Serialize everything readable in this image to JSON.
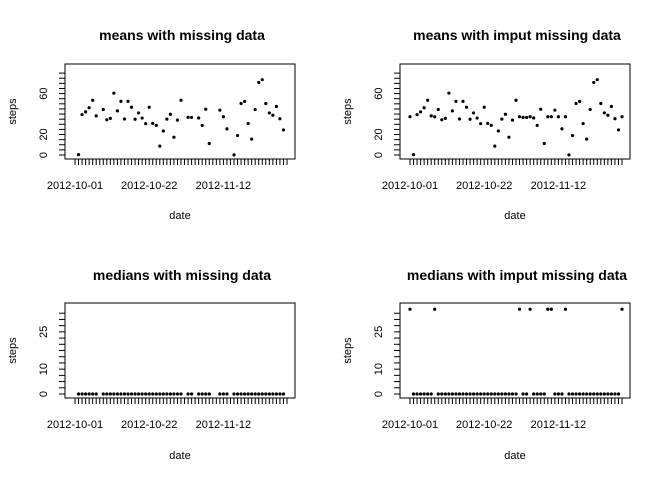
{
  "chart_data": [
    {
      "type": "scatter",
      "title": "means with missing data",
      "xlabel": "date",
      "ylabel": "steps",
      "x_tick_labels": [
        "2012-10-01",
        "2012-10-22",
        "2012-11-12"
      ],
      "y_ticks": [
        0,
        20,
        60
      ],
      "ylim": [
        0,
        85
      ],
      "days": 61,
      "x_label_every": 21,
      "values": [
        null,
        0.4,
        39.4,
        42.1,
        46.2,
        53.5,
        38.2,
        null,
        44.5,
        34.4,
        35.8,
        60.4,
        43.1,
        52.4,
        35.2,
        52.4,
        46.7,
        34.9,
        41.1,
        36.1,
        30.6,
        46.7,
        30.9,
        29.0,
        8.7,
        23.5,
        35.1,
        39.8,
        17.4,
        34.1,
        53.5,
        null,
        36.8,
        36.7,
        null,
        36.2,
        28.9,
        44.7,
        11.2,
        null,
        null,
        43.8,
        37.4,
        25.5,
        null,
        0.1,
        19.0,
        50.3,
        52.4,
        30.7,
        15.5,
        44.4,
        70.9,
        73.6,
        50.3,
        41.1,
        38.8,
        47.4,
        35.4,
        24.5,
        null
      ]
    },
    {
      "type": "scatter",
      "title": "means with imput missing data",
      "xlabel": "date",
      "ylabel": "steps",
      "x_tick_labels": [
        "2012-10-01",
        "2012-10-22",
        "2012-11-12"
      ],
      "y_ticks": [
        0,
        20,
        60
      ],
      "ylim": [
        0,
        85
      ],
      "days": 61,
      "x_label_every": 21,
      "values": [
        37.4,
        0.4,
        39.4,
        42.1,
        46.2,
        53.5,
        38.2,
        37.4,
        44.5,
        34.4,
        35.8,
        60.4,
        43.1,
        52.4,
        35.2,
        52.4,
        46.7,
        34.9,
        41.1,
        36.1,
        30.6,
        46.7,
        30.9,
        29.0,
        8.7,
        23.5,
        35.1,
        39.8,
        17.4,
        34.1,
        53.5,
        37.4,
        36.8,
        36.7,
        37.4,
        36.2,
        28.9,
        44.7,
        11.2,
        37.4,
        37.4,
        43.8,
        37.4,
        25.5,
        37.4,
        0.1,
        19.0,
        50.3,
        52.4,
        30.7,
        15.5,
        44.4,
        70.9,
        73.6,
        50.3,
        41.1,
        38.8,
        47.4,
        35.4,
        24.5,
        37.4
      ]
    },
    {
      "type": "scatter",
      "title": "medians with missing data",
      "xlabel": "date",
      "ylabel": "steps",
      "x_tick_labels": [
        "2012-10-01",
        "2012-10-22",
        "2012-11-12"
      ],
      "y_ticks": [
        0,
        10,
        25
      ],
      "ylim": [
        0,
        35
      ],
      "days": 61,
      "x_label_every": 21,
      "values": [
        null,
        0,
        0,
        0,
        0,
        0,
        0,
        null,
        0,
        0,
        0,
        0,
        0,
        0,
        0,
        0,
        0,
        0,
        0,
        0,
        0,
        0,
        0,
        0,
        0,
        0,
        0,
        0,
        0,
        0,
        0,
        null,
        0,
        0,
        null,
        0,
        0,
        0,
        0,
        null,
        null,
        0,
        0,
        0,
        null,
        0,
        0,
        0,
        0,
        0,
        0,
        0,
        0,
        0,
        0,
        0,
        0,
        0,
        0,
        0,
        null
      ]
    },
    {
      "type": "scatter",
      "title": "medians with imput missing data",
      "xlabel": "date",
      "ylabel": "steps",
      "x_tick_labels": [
        "2012-10-01",
        "2012-10-22",
        "2012-11-12"
      ],
      "y_ticks": [
        0,
        10,
        25
      ],
      "ylim": [
        0,
        35
      ],
      "days": 61,
      "x_label_every": 21,
      "values": [
        34.1,
        0,
        0,
        0,
        0,
        0,
        0,
        34.1,
        0,
        0,
        0,
        0,
        0,
        0,
        0,
        0,
        0,
        0,
        0,
        0,
        0,
        0,
        0,
        0,
        0,
        0,
        0,
        0,
        0,
        0,
        0,
        34.1,
        0,
        0,
        34.1,
        0,
        0,
        0,
        0,
        34.1,
        34.1,
        0,
        0,
        0,
        34.1,
        0,
        0,
        0,
        0,
        0,
        0,
        0,
        0,
        0,
        0,
        0,
        0,
        0,
        0,
        0,
        34.1
      ]
    }
  ]
}
